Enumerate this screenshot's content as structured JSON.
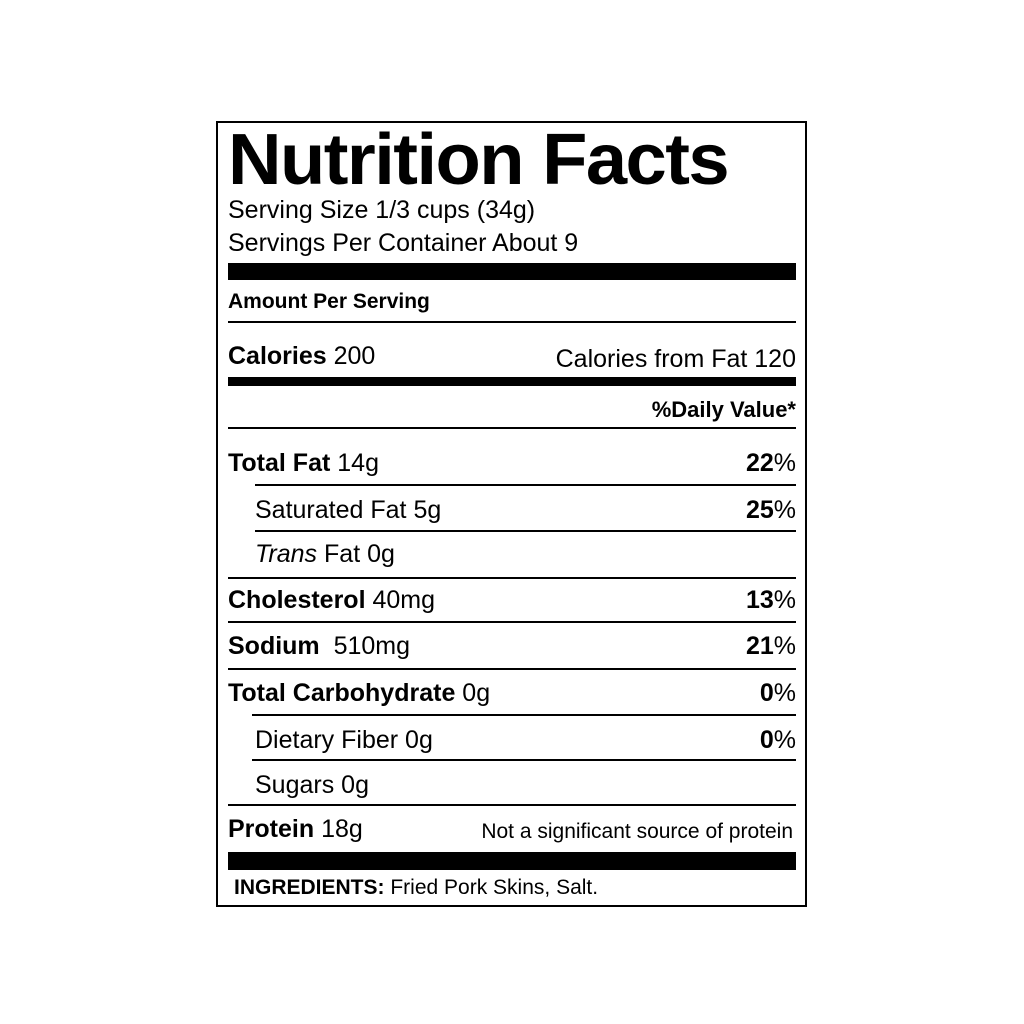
{
  "title": "Nutrition Facts",
  "serving_size": "Serving Size 1/3 cups (34g)",
  "servings_per_container": "Servings Per Container About 9",
  "amount_per_serving": "Amount Per Serving",
  "calories": {
    "label": "Calories",
    "value": "200",
    "from_fat": "Calories from Fat 120"
  },
  "daily_value_header": "%Daily Value*",
  "nutrients": [
    {
      "name": "Total Fat",
      "amount": "14g",
      "dv": "22",
      "pct": "%"
    },
    {
      "name": "Saturated Fat",
      "amount": "5g",
      "dv": "25",
      "pct": "%"
    },
    {
      "name": "Trans",
      "amount": "Fat 0g"
    },
    {
      "name": "Cholesterol",
      "amount": "40mg",
      "dv": "13",
      "pct": "%"
    },
    {
      "name": "Sodium",
      "amount": "510mg",
      "dv": "21",
      "pct": "%"
    },
    {
      "name": "Total Carbohydrate",
      "amount": "0g",
      "dv": "0",
      "pct": "%"
    },
    {
      "name": "Dietary Fiber",
      "amount": "0g",
      "dv": "0",
      "pct": "%"
    },
    {
      "name": "Sugars",
      "amount": "0g"
    },
    {
      "name": "Protein",
      "amount": "18g",
      "note": "Not a significant source of protein"
    }
  ],
  "ingredients": {
    "label": "INGREDIENTS:",
    "text": "Fried Pork Skins, Salt."
  }
}
